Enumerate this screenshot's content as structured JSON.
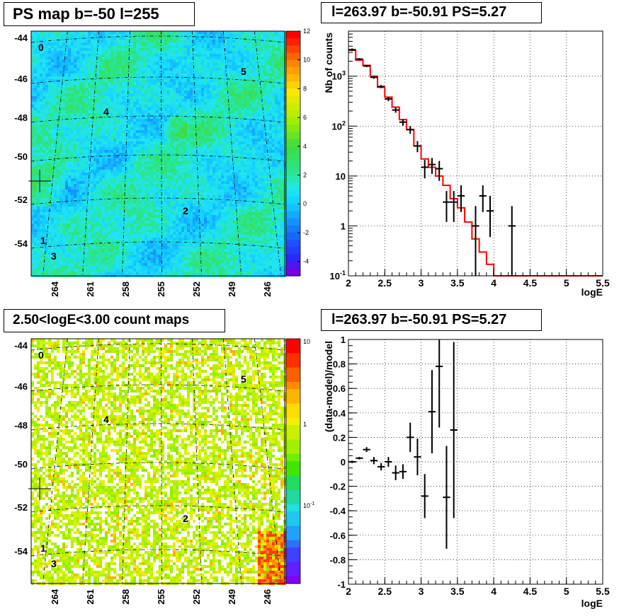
{
  "titles": {
    "map": "PS map b=-50 l=255",
    "spectrum": "l=263.97 b=-50.91 PS=5.27",
    "countmap": "2.50<logE<3.00 count maps",
    "residual": "l=263.97 b=-50.91 PS=5.27"
  },
  "colors": {
    "model": "#ff0000",
    "data": "#000000",
    "ps_map_bg": "#22e6f0",
    "count_map_bg": "#b4f000"
  },
  "chart_data": [
    {
      "type": "heatmap",
      "title": "PS map b=-50 l=255",
      "y_ticks": [
        "-44",
        "-46",
        "-48",
        "-50",
        "-52",
        "-54"
      ],
      "x_ticks": [
        "264",
        "261",
        "258",
        "255",
        "252",
        "249",
        "246"
      ],
      "colorbar_ticks": [
        "12",
        "10",
        "8",
        "6",
        "4",
        "2",
        "0",
        "-2",
        "-4"
      ],
      "colorbar_range": [
        -5,
        12
      ],
      "sources": [
        "0",
        "1",
        "2",
        "3",
        "4",
        "5"
      ]
    },
    {
      "type": "line",
      "title": "l=263.97 b=-50.91 PS=5.27",
      "xlabel": "logE",
      "ylabel": "Nb of counts",
      "xlim": [
        2,
        5.5
      ],
      "ylim": [
        0.1,
        8000
      ],
      "log_y": true,
      "grid": true,
      "x_ticks": [
        "2",
        "2.5",
        "3",
        "3.5",
        "4",
        "4.5",
        "5",
        "5.5"
      ],
      "y_ticks": [
        "10^-1",
        "1",
        "10",
        "10^2",
        "10^3"
      ],
      "model": {
        "edges": [
          2.0,
          2.1,
          2.2,
          2.3,
          2.4,
          2.5,
          2.6,
          2.7,
          2.8,
          2.9,
          3.0,
          3.1,
          3.2,
          3.3,
          3.4,
          3.5,
          3.6,
          3.7,
          3.8,
          3.9,
          4.0,
          5.5
        ],
        "values": [
          3300,
          2100,
          1650,
          1000,
          600,
          380,
          240,
          135,
          85,
          40,
          22,
          15,
          10,
          6.5,
          3.5,
          2.3,
          1.2,
          0.55,
          0.3,
          0.17,
          0.1
        ]
      },
      "data": {
        "x": [
          2.05,
          2.15,
          2.25,
          2.35,
          2.45,
          2.55,
          2.65,
          2.75,
          2.85,
          2.95,
          3.05,
          3.15,
          3.25,
          3.35,
          3.45,
          3.55,
          3.75,
          3.85,
          3.95,
          4.25
        ],
        "y": [
          3400,
          2200,
          1600,
          950,
          620,
          350,
          210,
          120,
          85,
          40,
          15,
          17,
          14,
          3,
          3,
          4,
          1,
          4,
          2,
          1
        ],
        "lo": [
          3200,
          2100,
          1520,
          890,
          575,
          315,
          185,
          102,
          70,
          30,
          9,
          11,
          8,
          1.2,
          1.2,
          1.9,
          0.1,
          1.9,
          0.6,
          0.1
        ],
        "hi": [
          3600,
          2300,
          1680,
          1010,
          665,
          385,
          235,
          138,
          100,
          50,
          21,
          23,
          20,
          5,
          5,
          6.5,
          2.5,
          6.5,
          4,
          2.5
        ]
      }
    },
    {
      "type": "heatmap",
      "title": "2.50<logE<3.00 count maps",
      "y_ticks": [
        "-44",
        "-46",
        "-48",
        "-50",
        "-52",
        "-54"
      ],
      "x_ticks": [
        "264",
        "261",
        "258",
        "255",
        "252",
        "249",
        "246"
      ],
      "colorbar_ticks": [
        "10",
        "1",
        "10^-1"
      ],
      "log_z": true,
      "sources": [
        "0",
        "1",
        "2",
        "3",
        "4",
        "5"
      ]
    },
    {
      "type": "scatter",
      "title": "l=263.97 b=-50.91 PS=5.27",
      "xlabel": "logE",
      "ylabel": "(data-model)/model",
      "xlim": [
        2,
        5.5
      ],
      "ylim": [
        -1,
        1
      ],
      "grid": true,
      "x_ticks": [
        "2",
        "2.5",
        "3",
        "3.5",
        "4",
        "4.5",
        "5",
        "5.5"
      ],
      "y_ticks": [
        "-1",
        "-0.8",
        "-0.6",
        "-0.4",
        "-0.2",
        "0",
        "0.2",
        "0.4",
        "0.6",
        "0.8",
        "1"
      ],
      "x": [
        2.05,
        2.15,
        2.25,
        2.35,
        2.45,
        2.55,
        2.65,
        2.75,
        2.85,
        2.95,
        3.05,
        3.15,
        3.25,
        3.35,
        3.45
      ],
      "y": [
        0.0,
        0.03,
        0.1,
        0.01,
        -0.04,
        0.0,
        -0.09,
        -0.08,
        0.2,
        0.04,
        -0.28,
        0.41,
        0.78,
        -0.29,
        0.26
      ],
      "err": [
        0.01,
        0.01,
        0.02,
        0.03,
        0.03,
        0.04,
        0.06,
        0.06,
        0.12,
        0.15,
        0.18,
        0.34,
        0.5,
        0.42,
        0.72
      ]
    }
  ]
}
